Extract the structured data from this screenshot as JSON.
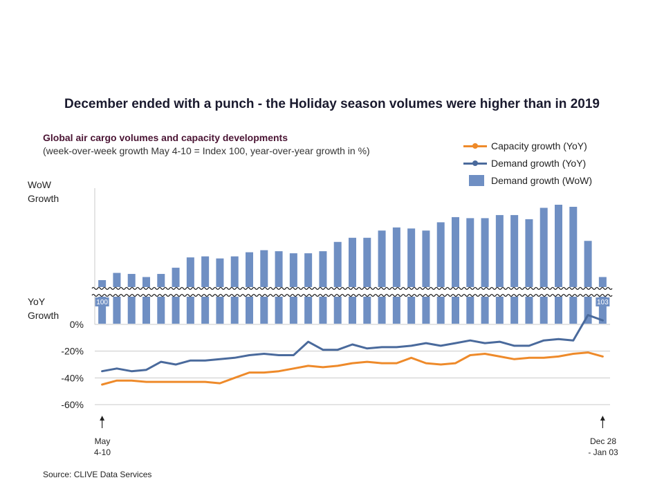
{
  "title": "December ended with a punch - the Holiday season volumes were higher than in 2019",
  "subtitle": "Global air cargo volumes and capacity developments",
  "subtitle2": "(week-over-week growth May 4-10 = Index 100, year-over-year growth in %)",
  "wow_axis_label": [
    "WoW",
    "Growth"
  ],
  "yoy_axis_label": [
    "YoY",
    "Growth"
  ],
  "source": "Source: CLIVE Data Services",
  "start_note": [
    "May",
    "4-10"
  ],
  "end_note": [
    "Dec 28",
    "- Jan 03"
  ],
  "colors": {
    "capacity": "#ee8a2a",
    "demand": "#4a6a9c",
    "bars": "#6f8fc3",
    "grid": "#c8c8c8"
  },
  "chart_data": {
    "type": "bar+line",
    "title": "December ended with a punch - the Holiday season volumes were higher than in 2019",
    "categories_count": 35,
    "x_start_label": "May 4-10",
    "x_end_label": "Dec 28 - Jan 03",
    "legend": [
      "Capacity growth (YoY)",
      "Demand growth (YoY)",
      "Demand growth (WoW)"
    ],
    "legend_position": "top-right",
    "bars": {
      "name": "Demand growth (WoW)",
      "unit": "index (May 4-10 = 100)",
      "first_label": "100",
      "last_label": "103",
      "values": [
        100,
        107,
        106,
        103,
        106,
        112,
        122,
        123,
        121,
        123,
        127,
        129,
        128,
        126,
        126,
        128,
        137,
        141,
        141,
        148,
        151,
        150,
        148,
        156,
        161,
        160,
        160,
        163,
        163,
        159,
        170,
        173,
        171,
        138,
        103
      ]
    },
    "series": [
      {
        "name": "Capacity growth (YoY)",
        "unit": "%",
        "values": [
          -45,
          -42,
          -42,
          -43,
          -43,
          -43,
          -43,
          -43,
          -44,
          -40,
          -36,
          -36,
          -35,
          -33,
          -31,
          -32,
          -31,
          -29,
          -28,
          -29,
          -29,
          -25,
          -29,
          -30,
          -29,
          -23,
          -22,
          -24,
          -26,
          -25,
          -25,
          -24,
          -22,
          -21,
          -24
        ]
      },
      {
        "name": "Demand growth (YoY)",
        "unit": "%",
        "values": [
          -35,
          -33,
          -35,
          -34,
          -28,
          -30,
          -27,
          -27,
          -26,
          -25,
          -23,
          -22,
          -23,
          -23,
          -13,
          -19,
          -19,
          -15,
          -18,
          -17,
          -17,
          -16,
          -14,
          -16,
          -14,
          -12,
          -14,
          -13,
          -16,
          -16,
          -12,
          -11,
          -12,
          7,
          3
        ]
      }
    ],
    "yoy_axis": {
      "ticks": [
        "0%",
        "-20%",
        "-40%",
        "-60%"
      ],
      "ylim": [
        -60,
        0
      ]
    }
  }
}
